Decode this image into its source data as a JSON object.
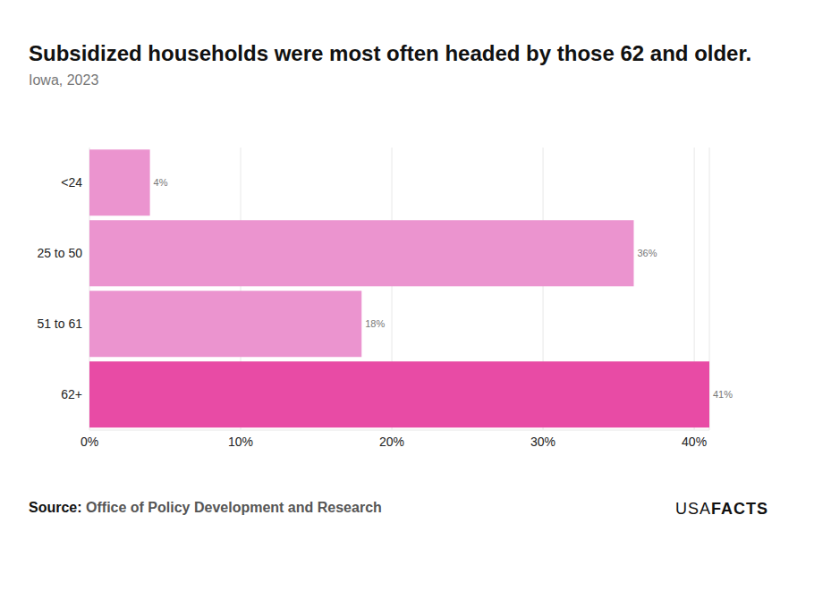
{
  "chart_data": {
    "type": "bar",
    "orientation": "horizontal",
    "title": "Subsidized households were most often headed by those 62 and older.",
    "subtitle": "Iowa, 2023",
    "source_label": "Source:",
    "source": "Office of Policy Development and Research",
    "brand": [
      "USA",
      "FACTS"
    ],
    "categories": [
      "<24",
      "25 to 50",
      "51 to 61",
      "62+"
    ],
    "values": [
      4,
      36,
      18,
      41
    ],
    "value_labels": [
      "4%",
      "36%",
      "18%",
      "41%"
    ],
    "colors": [
      "#eb94cf",
      "#eb94cf",
      "#eb94cf",
      "#e84ba5"
    ],
    "xlim": [
      0,
      41
    ],
    "xticks": [
      {
        "value": 0,
        "label": "0%"
      },
      {
        "value": 10,
        "label": "10%"
      },
      {
        "value": 20,
        "label": "20%"
      },
      {
        "value": 30,
        "label": "30%"
      },
      {
        "value": 40,
        "label": "40%"
      }
    ],
    "grid": true,
    "data_labels": true
  }
}
